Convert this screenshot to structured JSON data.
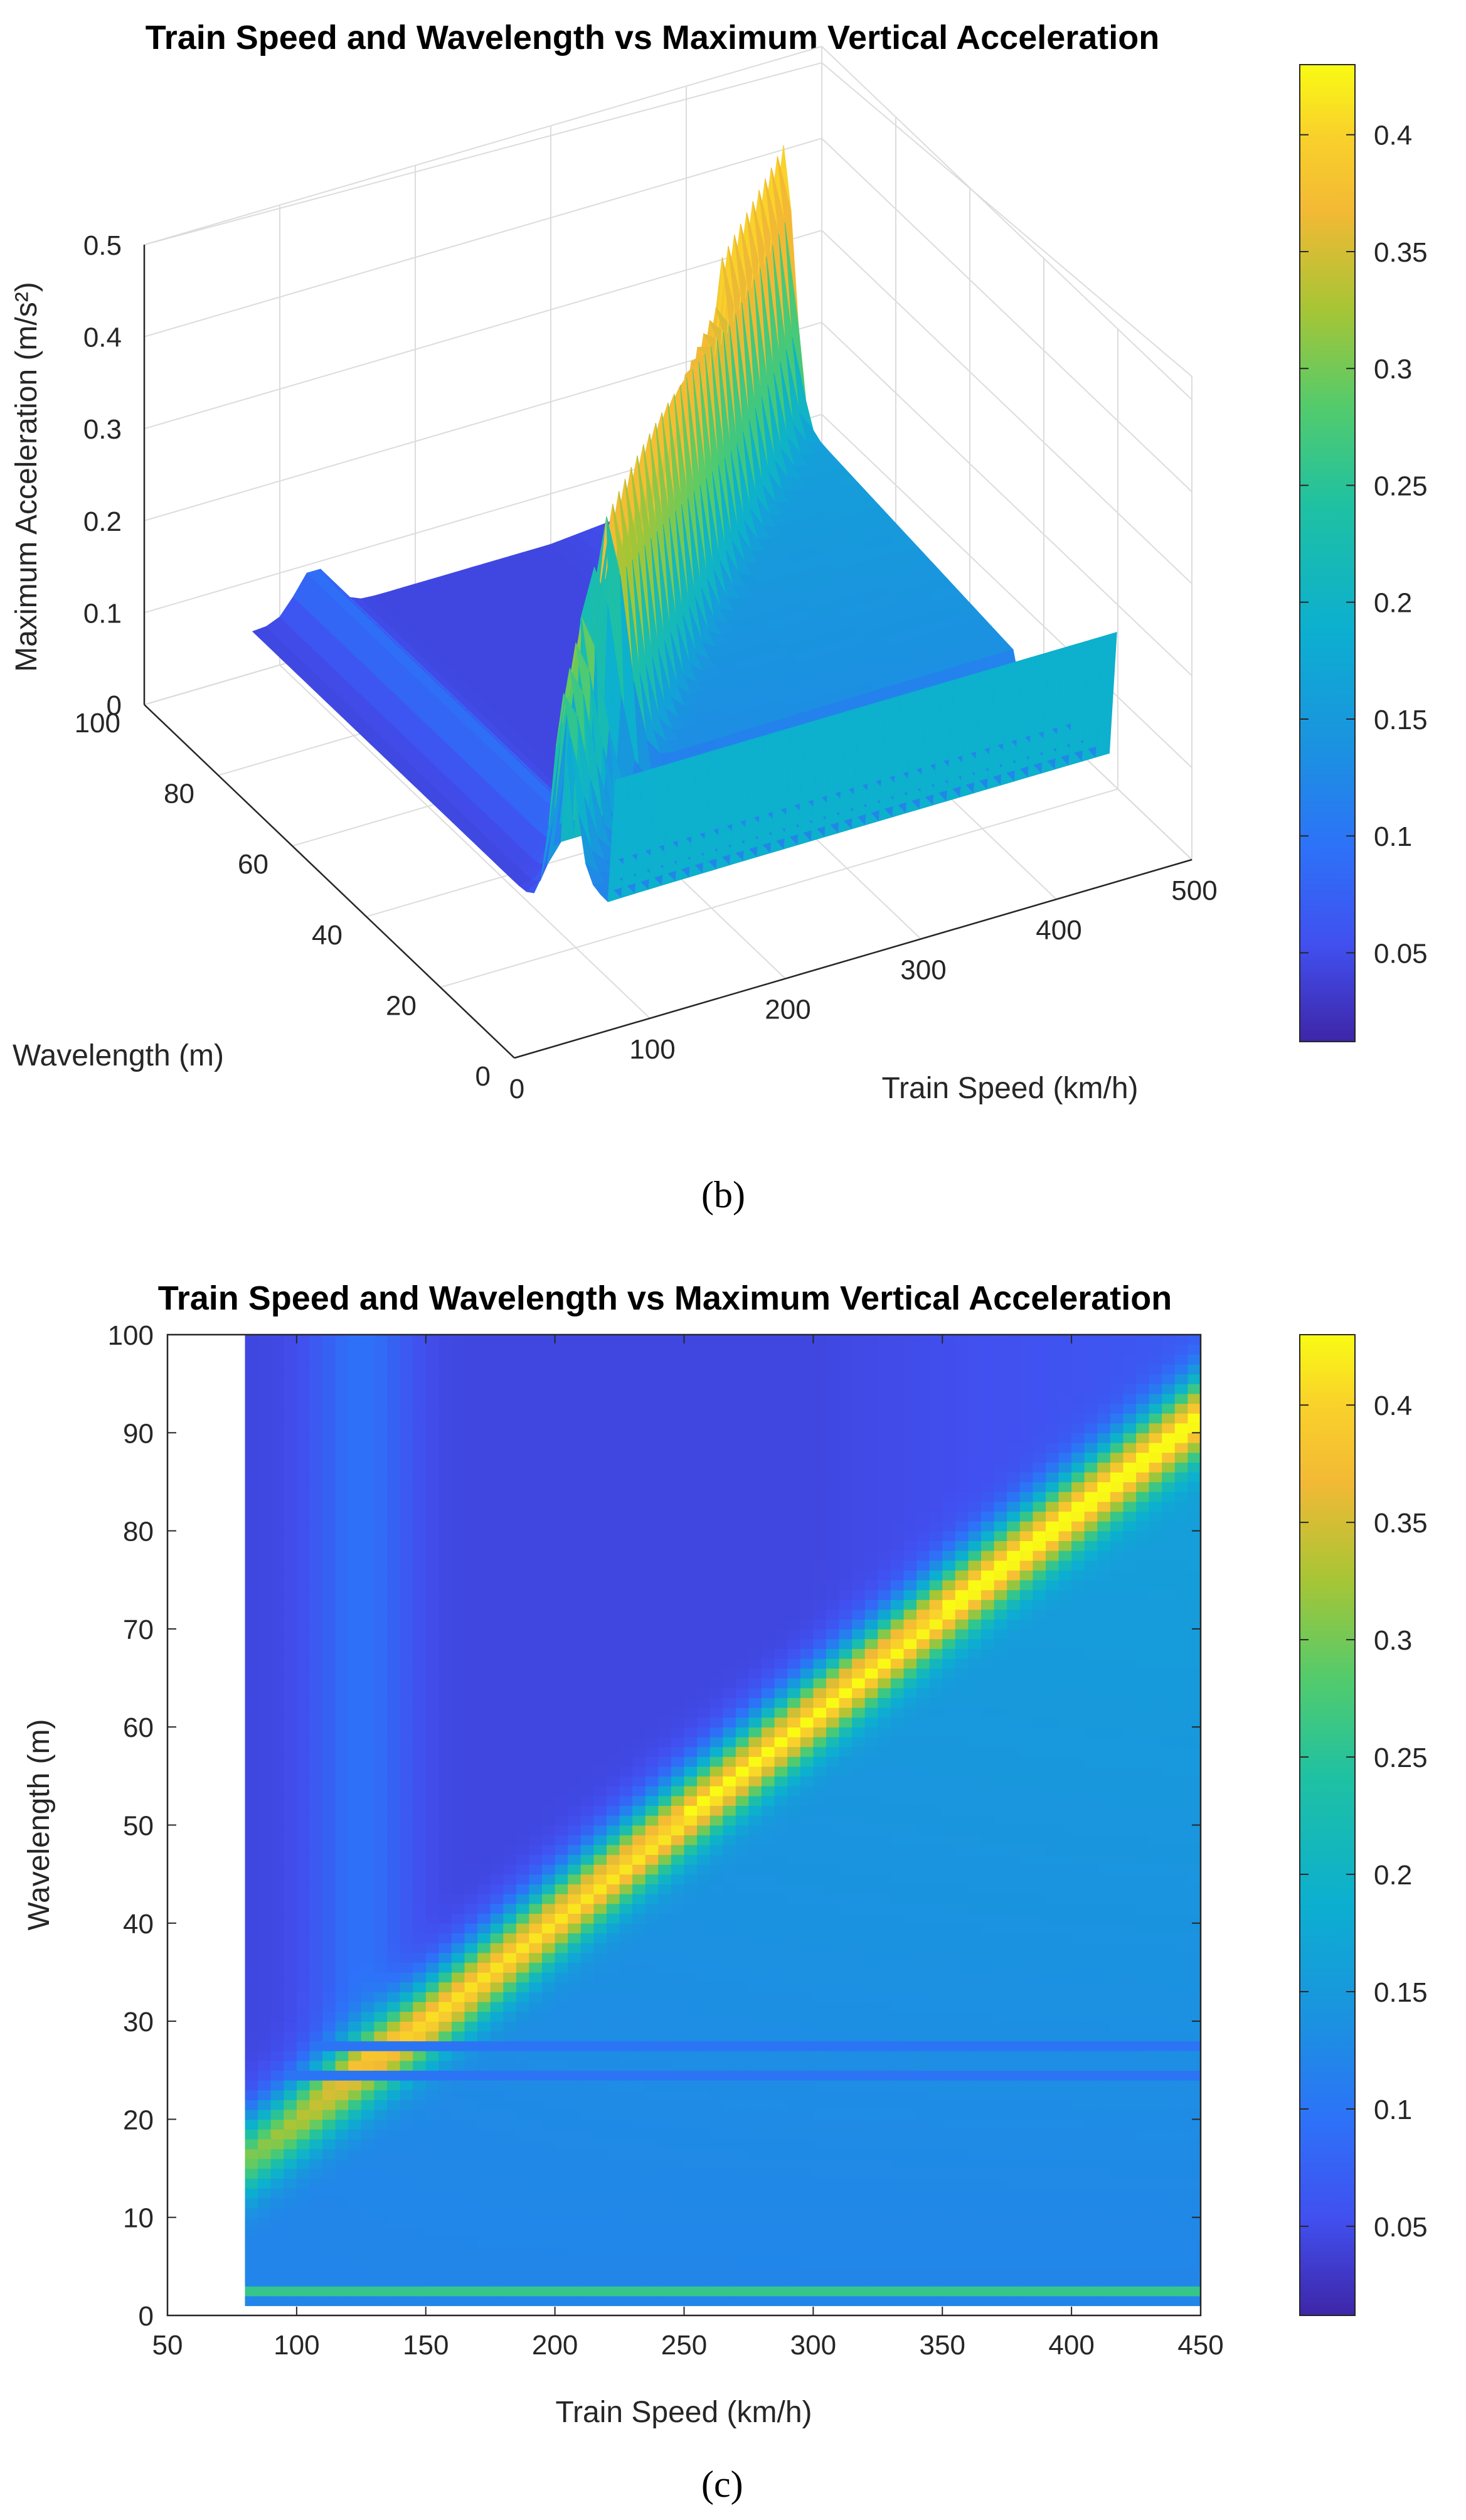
{
  "figure": {
    "label_b": "(b)",
    "label_c": "(c)"
  },
  "chart_data": [
    {
      "type": "surface",
      "panel": "b",
      "title": "Train Speed and Wavelength vs Maximum Vertical Acceleration",
      "xlabel": "Train Speed (km/h)",
      "ylabel": "Wavelength (m)",
      "zlabel": "Maximum Acceleration (m/s²)",
      "xlim": [
        0,
        500
      ],
      "ylim": [
        0,
        100
      ],
      "zlim": [
        0,
        0.5
      ],
      "xticks": [
        "0",
        "100",
        "200",
        "300",
        "400",
        "500"
      ],
      "yticks": [
        "0",
        "20",
        "40",
        "60",
        "80",
        "100"
      ],
      "zticks": [
        "0",
        "0.1",
        "0.2",
        "0.3",
        "0.4",
        "0.5"
      ],
      "grid": true,
      "colorbar": {
        "range": [
          0.012,
          0.43
        ],
        "ticks": [
          "0.05",
          "0.1",
          "0.15",
          "0.2",
          "0.25",
          "0.3",
          "0.35",
          "0.4"
        ]
      },
      "ridge": {
        "start": {
          "speed": 80,
          "wavelength": 16,
          "accel": 0.3
        },
        "end": {
          "speed": 450,
          "wavelength": 88,
          "accel": 0.43
        }
      },
      "colormap": "parula"
    },
    {
      "type": "heatmap",
      "panel": "c",
      "title": "Train Speed and Wavelength vs Maximum Vertical Acceleration",
      "xlabel": "Train Speed (km/h)",
      "ylabel": "Wavelength (m)",
      "xlim": [
        50,
        450
      ],
      "ylim": [
        0,
        100
      ],
      "data_xrange": [
        80,
        450
      ],
      "data_yrange": [
        1,
        100
      ],
      "xticks": [
        "50",
        "100",
        "150",
        "200",
        "250",
        "300",
        "350",
        "400",
        "450"
      ],
      "yticks": [
        "0",
        "10",
        "20",
        "30",
        "40",
        "50",
        "60",
        "70",
        "80",
        "90",
        "100"
      ],
      "colorbar": {
        "range": [
          0.012,
          0.43
        ],
        "ticks": [
          "0.05",
          "0.1",
          "0.15",
          "0.2",
          "0.25",
          "0.3",
          "0.35",
          "0.4"
        ]
      },
      "ridge": [
        {
          "speed": 80,
          "wavelength": 16,
          "accel": 0.3
        },
        {
          "speed": 150,
          "wavelength": 30,
          "accel": 0.4
        },
        {
          "speed": 250,
          "wavelength": 51,
          "accel": 0.41
        },
        {
          "speed": 350,
          "wavelength": 72,
          "accel": 0.41
        },
        {
          "speed": 450,
          "wavelength": 92,
          "accel": 0.4
        }
      ],
      "bands": [
        {
          "wavelength": 2.5,
          "accel": 0.26
        },
        {
          "wavelength": 24.5,
          "accel": 0.1
        },
        {
          "wavelength": 27.5,
          "accel": 0.1
        }
      ],
      "colormap": "parula"
    }
  ]
}
